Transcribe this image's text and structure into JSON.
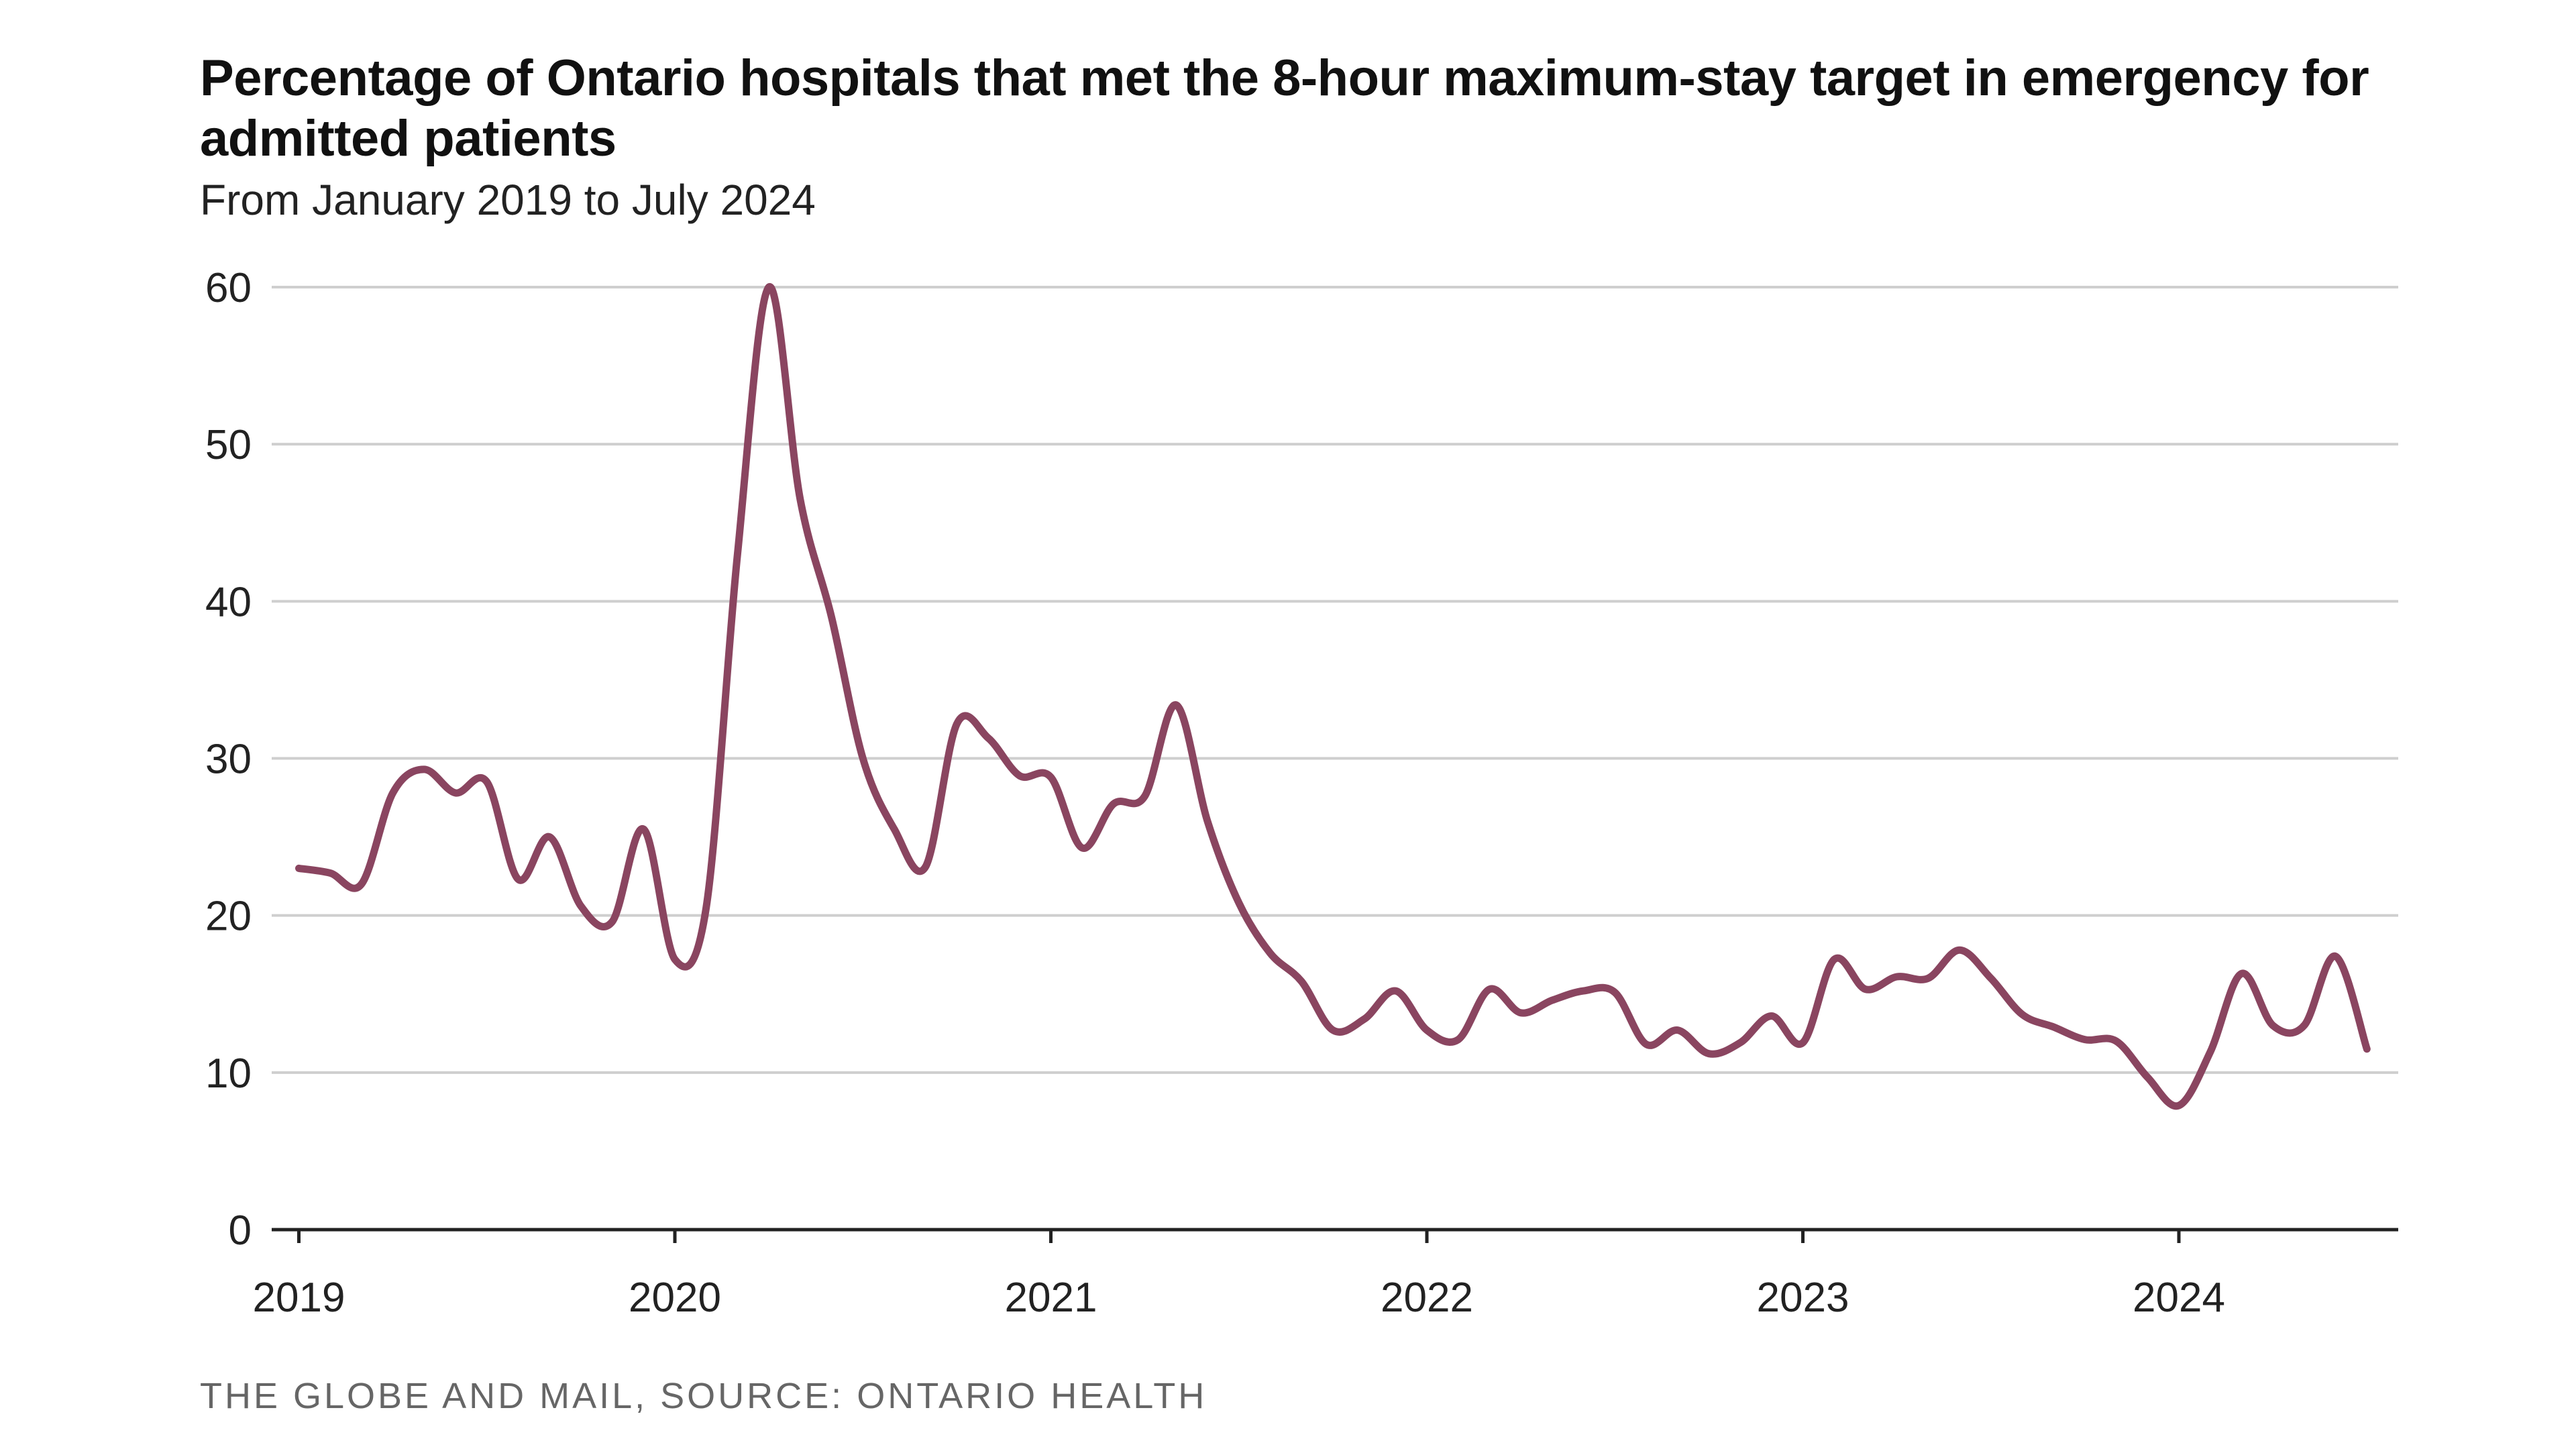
{
  "source": "THE GLOBE AND MAIL, SOURCE: ONTARIO HEALTH",
  "colors": {
    "line": "#8a4560",
    "grid": "#cfcfcf",
    "axis": "#222222"
  },
  "chart_data": {
    "type": "line",
    "title": "Percentage of Ontario hospitals that met the 8-hour maximum-stay target in emergency for admitted patients",
    "subtitle": "From January 2019 to July 2024",
    "xlabel": "",
    "ylabel": "",
    "ylim": [
      0,
      60
    ],
    "yticks": [
      0,
      10,
      20,
      30,
      40,
      50,
      60
    ],
    "xticks": [
      "2019",
      "2020",
      "2021",
      "2022",
      "2023",
      "2024"
    ],
    "grid": true,
    "series": [
      {
        "x": [
          "2019-01",
          "2019-02",
          "2019-03",
          "2019-04",
          "2019-05",
          "2019-06",
          "2019-07",
          "2019-08",
          "2019-09",
          "2019-10",
          "2019-11",
          "2019-12",
          "2020-01",
          "2020-02",
          "2020-03",
          "2020-04",
          "2020-05",
          "2020-06",
          "2020-07",
          "2020-08",
          "2020-09",
          "2020-10",
          "2020-11",
          "2020-12",
          "2021-01",
          "2021-02",
          "2021-03",
          "2021-04",
          "2021-05",
          "2021-06",
          "2021-07",
          "2021-08",
          "2021-09",
          "2021-10",
          "2021-11",
          "2021-12",
          "2022-01",
          "2022-02",
          "2022-03",
          "2022-04",
          "2022-05",
          "2022-06",
          "2022-07",
          "2022-08",
          "2022-09",
          "2022-10",
          "2022-11",
          "2022-12",
          "2023-01",
          "2023-02",
          "2023-03",
          "2023-04",
          "2023-05",
          "2023-06",
          "2023-07",
          "2023-08",
          "2023-09",
          "2023-10",
          "2023-11",
          "2023-12",
          "2024-01",
          "2024-02",
          "2024-03",
          "2024-04",
          "2024-05",
          "2024-06",
          "2024-07"
        ],
        "values": [
          23,
          22.7,
          22,
          27.8,
          29.3,
          27.8,
          28.5,
          22.3,
          25,
          20.6,
          19.6,
          25.5,
          17.2,
          20.5,
          43,
          60,
          46.5,
          39,
          30,
          25.5,
          23.1,
          32.2,
          31.3,
          28.9,
          28.8,
          24.3,
          27.1,
          27.6,
          33.4,
          26,
          20.8,
          17.6,
          15.8,
          12.7,
          13.4,
          15.2,
          12.7,
          12.1,
          15.3,
          13.8,
          14.6,
          15.2,
          15.1,
          11.8,
          12.7,
          11.2,
          11.9,
          13.6,
          11.9,
          17.2,
          15.3,
          16.1,
          16,
          17.8,
          16,
          13.7,
          12.9,
          12.1,
          12,
          9.7,
          7.9,
          11.3,
          16.3,
          13,
          13,
          17.4,
          11.5
        ]
      }
    ]
  }
}
